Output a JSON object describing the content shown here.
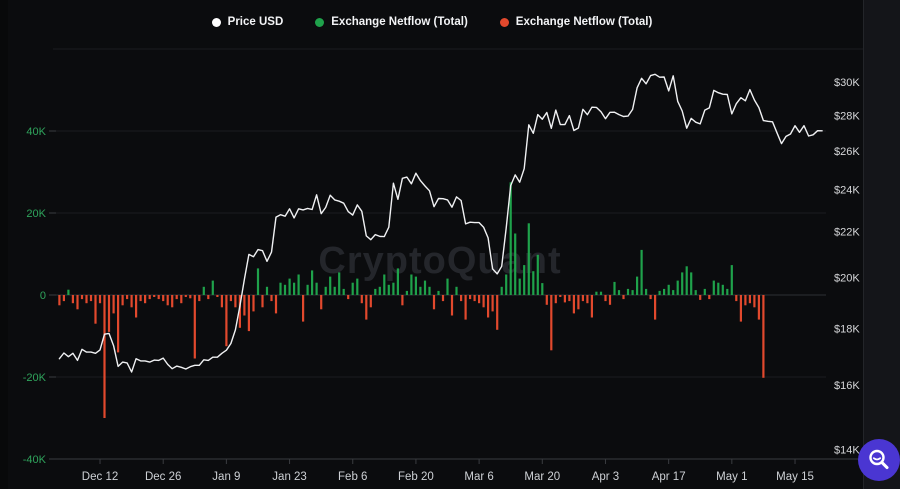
{
  "watermark": "CryptoQuant",
  "colors": {
    "background": "#0b0c0e",
    "price_line": "#f0f1f3",
    "inflow_green": "#1fa24b",
    "outflow_red": "#e2492d",
    "left_axis_text": "#2fa45c",
    "right_axis_text": "#d6d7d9",
    "x_axis_text": "#ced1d5",
    "gridline": "#1b1d20",
    "zero_line": "#2e3034",
    "axis_line": "#3a3c40",
    "watermark_text": "#24262b",
    "button_bg": "#4a36d2"
  },
  "legend": [
    {
      "label": "Price USD",
      "color": "#ffffff"
    },
    {
      "label": "Exchange Netflow (Total)",
      "color": "#1fa24b"
    },
    {
      "label": "Exchange Netflow (Total)",
      "color": "#e2492d"
    }
  ],
  "zoom_button": {
    "icon": "magnifier"
  },
  "chart_data": {
    "type": "line+bar",
    "title": "",
    "frequency": "daily",
    "x_start": "Dec 3",
    "x_end": "May 21",
    "x_ticks": [
      {
        "label": "Dec 12",
        "day": 9
      },
      {
        "label": "Dec 26",
        "day": 23
      },
      {
        "label": "Jan 9",
        "day": 37
      },
      {
        "label": "Jan 23",
        "day": 51
      },
      {
        "label": "Feb 6",
        "day": 65
      },
      {
        "label": "Feb 20",
        "day": 79
      },
      {
        "label": "Mar 6",
        "day": 93
      },
      {
        "label": "Mar 20",
        "day": 107
      },
      {
        "label": "Apr 3",
        "day": 121
      },
      {
        "label": "Apr 17",
        "day": 135
      },
      {
        "label": "May 1",
        "day": 149
      },
      {
        "label": "May 15",
        "day": 163
      }
    ],
    "left_axis": {
      "title": "Exchange Netflow (Total)",
      "units": "thousands",
      "range": [
        -40,
        40
      ],
      "ticks": [
        {
          "label": "40K",
          "value": 40
        },
        {
          "label": "20K",
          "value": 20
        },
        {
          "label": "0",
          "value": 0
        },
        {
          "label": "-20K",
          "value": -20
        },
        {
          "label": "-40K",
          "value": -40
        }
      ]
    },
    "right_axis": {
      "title": "Price USD",
      "scale": "log",
      "units": "USD thousands",
      "ticks": [
        {
          "label": "$30K",
          "value": 30
        },
        {
          "label": "$28K",
          "value": 28
        },
        {
          "label": "$26K",
          "value": 26
        },
        {
          "label": "$24K",
          "value": 24
        },
        {
          "label": "$22K",
          "value": 22
        },
        {
          "label": "$20K",
          "value": 20
        },
        {
          "label": "$18K",
          "value": 18
        },
        {
          "label": "$16K",
          "value": 16
        },
        {
          "label": "$14K",
          "value": 14
        }
      ]
    },
    "series": [
      {
        "name": "Price USD",
        "type": "line",
        "axis": "right",
        "color": "#f0f1f3",
        "units": "USD thousands",
        "values": [
          16.9,
          17.1,
          16.97,
          17.09,
          16.84,
          17.23,
          17.13,
          17.13,
          17.09,
          17.21,
          17.78,
          17.81,
          17.36,
          16.63,
          16.78,
          16.75,
          16.44,
          16.9,
          16.82,
          16.82,
          16.78,
          16.85,
          16.84,
          16.92,
          16.7,
          16.55,
          16.64,
          16.6,
          16.54,
          16.62,
          16.67,
          16.67,
          16.86,
          16.84,
          16.95,
          16.95,
          17.09,
          17.2,
          17.44,
          17.94,
          18.85,
          19.93,
          20.98,
          20.88,
          21.19,
          21.14,
          20.68,
          21.08,
          22.67,
          22.78,
          22.71,
          23.06,
          22.63,
          23.06,
          23.01,
          23.08,
          23.03,
          23.74,
          22.83,
          23.13,
          23.72,
          23.49,
          23.43,
          23.33,
          22.93,
          22.76,
          23.25,
          22.94,
          21.8,
          21.63,
          21.86,
          21.78,
          21.77,
          22.2,
          24.32,
          23.52,
          24.57,
          24.63,
          24.29,
          24.83,
          24.45,
          24.18,
          23.94,
          23.16,
          23.56,
          23.55,
          23.49,
          23.14,
          23.64,
          23.46,
          22.35,
          22.43,
          22.41,
          22.41,
          22.2,
          21.71,
          20.36,
          20.15,
          20.47,
          22.16,
          24.2,
          24.74,
          24.37,
          25.06,
          27.45,
          26.97,
          28.04,
          27.77,
          28.16,
          27.25,
          28.3,
          27.47,
          27.46,
          27.98,
          27.13,
          27.27,
          28.35,
          28.03,
          28.47,
          28.46,
          28.2,
          27.8,
          28.17,
          28.18,
          28.04,
          27.93,
          27.95,
          28.34,
          29.64,
          30.23,
          29.89,
          30.4,
          30.48,
          30.3,
          30.31,
          29.45,
          30.39,
          28.82,
          28.25,
          27.26,
          27.82,
          27.6,
          27.5,
          28.3,
          28.43,
          29.48,
          29.34,
          29.25,
          29.23,
          28.08,
          28.68,
          29.04,
          28.85,
          29.53,
          28.9,
          28.45,
          27.69,
          27.65,
          27.62,
          27.0,
          26.4,
          26.8,
          26.93,
          27.4,
          27.03,
          27.4,
          26.82,
          26.89,
          27.12,
          27.11
        ]
      },
      {
        "name": "Exchange Netflow (Total)",
        "type": "bar",
        "axis": "left",
        "color_positive": "#1fa24b",
        "color_negative": "#e2492d",
        "units": "thousands",
        "values": [
          -2.5,
          -1.5,
          1.3,
          -2.0,
          -3.5,
          -1.0,
          -2.0,
          -1.5,
          -7.0,
          -2.0,
          -30.0,
          -9.0,
          -4.5,
          -14.0,
          -2.5,
          -1.0,
          -3.0,
          -5.5,
          -1.5,
          -2.0,
          -1.0,
          -0.5,
          -1.0,
          -1.5,
          -2.5,
          -3.0,
          -1.0,
          -2.0,
          -0.5,
          -0.8,
          -15.5,
          -1.5,
          2.0,
          -1.0,
          3.5,
          -0.5,
          -3.0,
          -12.5,
          -1.5,
          -3.0,
          -8.0,
          -5.0,
          -8.8,
          -4.0,
          6.5,
          -3.0,
          2.0,
          -1.5,
          -4.5,
          3.0,
          2.5,
          4.0,
          3.0,
          5.0,
          -6.5,
          2.5,
          6.0,
          3.0,
          -3.5,
          2.0,
          4.5,
          2.0,
          5.5,
          1.5,
          -1.0,
          3.0,
          4.0,
          -2.0,
          -6.0,
          -3.0,
          1.5,
          2.0,
          5.0,
          2.5,
          3.0,
          6.5,
          -2.5,
          1.0,
          5.0,
          4.5,
          2.0,
          3.5,
          2.0,
          -3.5,
          1.0,
          -1.5,
          4.0,
          -5.0,
          2.0,
          -1.5,
          -6.0,
          -1.0,
          -1.5,
          -2.0,
          -3.0,
          -5.5,
          -4.0,
          -8.5,
          2.0,
          5.0,
          27.5,
          15.0,
          4.0,
          7.3,
          17.5,
          5.8,
          9.8,
          2.9,
          -2.4,
          -13.5,
          -2.0,
          -0.5,
          -1.8,
          -1.5,
          -4.5,
          -3.5,
          -1.5,
          -2.0,
          -5.5,
          0.8,
          0.8,
          -1.5,
          -2.4,
          3.2,
          1.2,
          -1.0,
          1.5,
          1.2,
          4.5,
          11.0,
          1.5,
          -1.0,
          -6.0,
          1.0,
          1.5,
          2.5,
          1.2,
          3.5,
          5.5,
          7.0,
          5.5,
          1.2,
          -1.2,
          1.5,
          -1.0,
          3.5,
          3.0,
          2.5,
          1.5,
          7.3,
          -1.5,
          -6.5,
          -2.5,
          -2.0,
          -3.0,
          -6.0,
          -20.2,
          null,
          null,
          null,
          null,
          null,
          null,
          null,
          null,
          null,
          null,
          null,
          null,
          null
        ]
      }
    ]
  }
}
